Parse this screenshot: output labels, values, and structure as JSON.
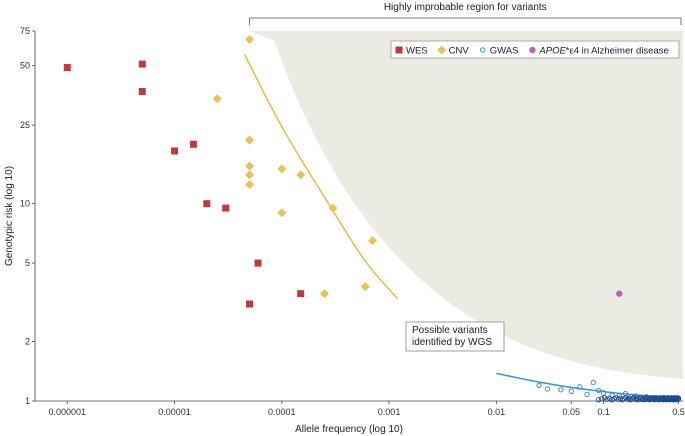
{
  "chart_data": {
    "type": "scatter",
    "title": "",
    "xlabel": "Allele frequency (log 10)",
    "ylabel": "Genotypic risk (log 10)",
    "x_scale": "log",
    "y_scale": "log",
    "xlim": [
      5e-07,
      0.55
    ],
    "ylim": [
      1,
      75
    ],
    "x_ticks": [
      {
        "value": 1e-06,
        "label": "0.000001"
      },
      {
        "value": 1e-05,
        "label": "0.00001"
      },
      {
        "value": 0.0001,
        "label": "0.0001"
      },
      {
        "value": 0.001,
        "label": "0.001"
      },
      {
        "value": 0.01,
        "label": "0.01"
      },
      {
        "value": 0.05,
        "label": "0.05"
      },
      {
        "value": 0.1,
        "label": "0.1"
      },
      {
        "value": 0.5,
        "label": "0.5"
      }
    ],
    "y_ticks": [
      {
        "value": 1,
        "label": "1"
      },
      {
        "value": 2,
        "label": "2"
      },
      {
        "value": 5,
        "label": "5"
      },
      {
        "value": 10,
        "label": "10"
      },
      {
        "value": 25,
        "label": "25"
      },
      {
        "value": 50,
        "label": "50"
      },
      {
        "value": 75,
        "label": "75"
      }
    ],
    "grid": false,
    "legend_position": "top-right",
    "region_label": "Highly improbable region for variants",
    "annotation": "Possible variants\nidentified by WGS",
    "colors": {
      "wes": "#c0393b",
      "cnv": "#e5c25a",
      "gwas": "#2f86c9",
      "apoe": "#b06ab3",
      "region": "#ecebe3",
      "cnv_trend": "#e2bc4a",
      "gwas_trend": "#3a93cf"
    },
    "series": [
      {
        "name": "WES",
        "marker": "square",
        "points": [
          [
            1e-06,
            49
          ],
          [
            5e-06,
            51
          ],
          [
            5e-06,
            37
          ],
          [
            1e-05,
            18.5
          ],
          [
            1.5e-05,
            20
          ],
          [
            2e-05,
            10
          ],
          [
            3e-05,
            9.5
          ],
          [
            5e-05,
            3.1
          ],
          [
            6e-05,
            5
          ],
          [
            0.00015,
            3.5
          ]
        ]
      },
      {
        "name": "CNV",
        "marker": "diamond",
        "points": [
          [
            5e-05,
            68
          ],
          [
            2.5e-05,
            34
          ],
          [
            5e-05,
            21
          ],
          [
            5e-05,
            15.5
          ],
          [
            5e-05,
            14
          ],
          [
            5e-05,
            12.5
          ],
          [
            0.0001,
            15
          ],
          [
            0.00015,
            14
          ],
          [
            0.0001,
            9
          ],
          [
            0.0003,
            9.5
          ],
          [
            0.0007,
            6.5
          ],
          [
            0.00025,
            3.5
          ],
          [
            0.0006,
            3.8
          ]
        ]
      },
      {
        "name": "GWAS",
        "marker": "circle",
        "points": [
          [
            0.025,
            1.2
          ],
          [
            0.03,
            1.15
          ],
          [
            0.04,
            1.14
          ],
          [
            0.05,
            1.12
          ],
          [
            0.06,
            1.18
          ],
          [
            0.07,
            1.08
          ],
          [
            0.08,
            1.24
          ],
          [
            0.09,
            1.13
          ],
          [
            0.1,
            1.1
          ],
          [
            0.12,
            1.07
          ],
          [
            0.14,
            1.06
          ],
          [
            0.16,
            1.09
          ],
          [
            0.18,
            1.05
          ],
          [
            0.2,
            1.06
          ],
          [
            0.22,
            1.04
          ],
          [
            0.25,
            1.05
          ],
          [
            0.28,
            1.03
          ],
          [
            0.3,
            1.04
          ],
          [
            0.33,
            1.03
          ],
          [
            0.36,
            1.04
          ],
          [
            0.4,
            1.02
          ],
          [
            0.44,
            1.03
          ],
          [
            0.48,
            1.02
          ],
          [
            0.5,
            1.03
          ]
        ]
      },
      {
        "name": "APOE*ε4 in Alzheimer disease",
        "marker": "circle-filled",
        "points": [
          [
            0.14,
            3.5
          ]
        ]
      }
    ],
    "legend": [
      {
        "label": "WES",
        "marker": "square",
        "color_key": "wes"
      },
      {
        "label": "CNV",
        "marker": "diamond",
        "color_key": "cnv"
      },
      {
        "label": "GWAS",
        "marker": "circle",
        "color_key": "gwas"
      },
      {
        "label_italic": "APOE",
        "label_rest": "*ε4 in Alzheimer disease",
        "marker": "circle-filled",
        "color_key": "apoe"
      }
    ],
    "trend_lines": [
      {
        "color_key": "cnv_trend",
        "points": [
          [
            4.5e-05,
            57
          ],
          [
            0.0001,
            24
          ],
          [
            0.0003,
            9.2
          ],
          [
            0.0006,
            5
          ],
          [
            0.0012,
            3.3
          ]
        ]
      },
      {
        "color_key": "gwas_trend",
        "points": [
          [
            0.01,
            1.38
          ],
          [
            0.03,
            1.22
          ],
          [
            0.08,
            1.13
          ],
          [
            0.2,
            1.07
          ],
          [
            0.5,
            1.04
          ]
        ]
      }
    ]
  }
}
